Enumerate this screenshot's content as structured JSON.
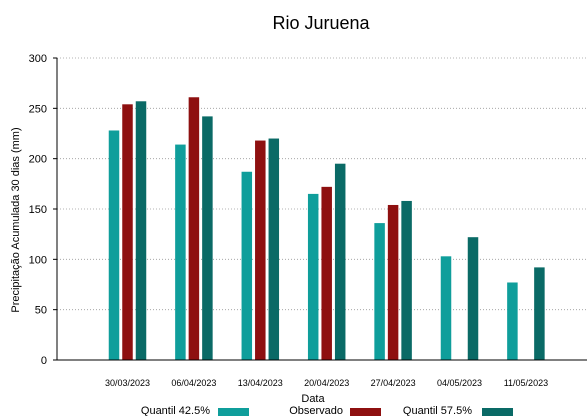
{
  "chart_data": {
    "type": "bar",
    "title": "Rio Juruena",
    "xlabel": "Data",
    "ylabel": "Precipitação Acumulada 30 dias (mm)",
    "ylim": [
      0,
      300
    ],
    "yticks": [
      0,
      50,
      100,
      150,
      200,
      250,
      300
    ],
    "grid": true,
    "legend_position": "bottom",
    "categories": [
      "30/03/2023",
      "06/04/2023",
      "13/04/2023",
      "20/04/2023",
      "27/04/2023",
      "04/05/2023",
      "11/05/2023"
    ],
    "series": [
      {
        "name": "Quantil 42.5%",
        "color": "#0f9e9b",
        "values": [
          228,
          214,
          187,
          165,
          136,
          103,
          77
        ]
      },
      {
        "name": "Observado",
        "color": "#8e1010",
        "values": [
          254,
          261,
          218,
          172,
          154,
          null,
          null
        ]
      },
      {
        "name": "Quantil 57.5%",
        "color": "#0a6a66",
        "values": [
          257,
          242,
          220,
          195,
          158,
          122,
          92
        ]
      }
    ]
  }
}
